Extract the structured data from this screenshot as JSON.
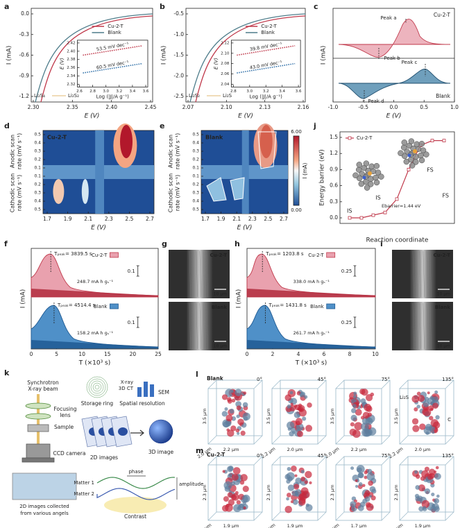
{
  "panels": {
    "a": {
      "label": "a",
      "xlabel": "E (V)",
      "ylabel": "I (mA)",
      "xticks": [
        "2.30",
        "2.35",
        "2.40",
        "2.45"
      ],
      "yticks": [
        "0.0",
        "-0.3",
        "-0.6",
        "-0.9",
        "-1.2"
      ],
      "legend": [
        "Cu-2-T",
        "Blank"
      ],
      "inset": {
        "xlabel": "Log (|J|/A g⁻¹)",
        "ylabel": "E (V)",
        "xticks": [
          "2.6",
          "2.8",
          "3.0",
          "3.2",
          "3.4",
          "3.6"
        ],
        "yticks": [
          "2.42",
          "2.40",
          "2.38",
          "2.36",
          "2.34",
          "2.32"
        ],
        "slopes": [
          "53.5 mV dec⁻¹",
          "60.5 mV dec⁻¹"
        ]
      },
      "note": [
        "Li₂S₄",
        "Li₂S₂"
      ]
    },
    "b": {
      "label": "b",
      "xlabel": "E (V)",
      "ylabel": "I (mA)",
      "xticks": [
        "2.07",
        "2.10",
        "2.13",
        "2.16"
      ],
      "yticks": [
        "-0.5",
        "-1.0",
        "-1.5",
        "-2.0",
        "-2.5"
      ],
      "legend": [
        "Cu-2-T",
        "Blank"
      ],
      "inset": {
        "xlabel": "Log (|J|/A g⁻¹)",
        "ylabel": "E (V)",
        "xticks": [
          "2.8",
          "3.0",
          "3.2",
          "3.4",
          "3.6"
        ],
        "yticks": [
          "2.12",
          "2.10",
          "2.08",
          "2.06",
          "2.04"
        ],
        "slopes": [
          "39.8 mV dec⁻¹",
          "43.0 mV dec⁻¹"
        ]
      },
      "note": [
        "Li₂S₂",
        "Li₂S"
      ]
    },
    "c": {
      "label": "c",
      "xlabel": "E (V)",
      "ylabel": "I (mA)",
      "xticks": [
        "-1.0",
        "-0.5",
        "0.0",
        "0.5",
        "1.0"
      ],
      "legend": [
        "Cu-2-T",
        "Blank"
      ],
      "peaks": [
        "Peak a",
        "Peak b",
        "Peak c",
        "Peak d"
      ]
    },
    "d": {
      "label": "d",
      "name": "Cu-2-T",
      "xlabel": "E (V)",
      "ylabel": [
        "Cathodic scan",
        "rate (mV s⁻¹)",
        "Anodic scan",
        "rate (mV s⁻¹)"
      ],
      "xticks": [
        "1.7",
        "1.9",
        "2.1",
        "2.3",
        "2.5",
        "2.7"
      ],
      "yticks": [
        "0.5",
        "0.4",
        "0.3",
        "0.2",
        "0.1",
        "0.1",
        "0.2",
        "0.3",
        "0.4",
        "0.5"
      ]
    },
    "e": {
      "label": "e",
      "name": "Blank",
      "xlabel": "E (V)",
      "ylabel": [
        "Cathodic scan",
        "rate (mV s⁻¹)",
        "Anodic scan",
        "rate (mV s⁻¹)"
      ],
      "xticks": [
        "1.7",
        "1.9",
        "2.1",
        "2.3",
        "2.5",
        "2.7"
      ],
      "yticks": [
        "0.5",
        "0.4",
        "0.3",
        "0.2",
        "0.1",
        "0.1",
        "0.2",
        "0.3",
        "0.4",
        "0.5"
      ],
      "colorbar": [
        "6.00",
        "0.00"
      ],
      "colorbar_label": "I (mA)"
    },
    "j": {
      "label": "j",
      "legend": "Cu-2-T",
      "xlabel": "Reaction coordinate",
      "ylabel": "Energy barrier (eV)",
      "yticks": [
        "1.5",
        "1.2",
        "0.9",
        "0.6",
        "0.3",
        "0.0"
      ],
      "states": [
        "IS",
        "FS",
        "IS",
        "FS"
      ],
      "barrier": "Ebarrier=1.44 eV"
    },
    "f": {
      "label": "f",
      "xlabel": "T (×10³ s)",
      "ylabel": "I (mA)",
      "xticks": [
        "0",
        "5",
        "10",
        "15",
        "20",
        "25"
      ],
      "top": {
        "peak": "Tₚₑₐₖ= 3839.5 s",
        "capacity": "248.7 mA h gₛ⁻¹",
        "legend": "Cu-2-T",
        "scale": "0.1"
      },
      "bottom": {
        "peak": "Tₚₑₐₖ= 4514.4 s",
        "capacity": "158.2 mA h gₛ⁻¹",
        "legend": "Blank",
        "scale": "0.1"
      }
    },
    "g": {
      "label": "g",
      "top": {
        "name": "Cu-2-T",
        "scale": "10 μm"
      },
      "bottom": {
        "name": "Blank",
        "scale": "10 μm"
      }
    },
    "h": {
      "label": "h",
      "xlabel": "T (×10³ s)",
      "ylabel": "I (mA)",
      "xticks": [
        "0",
        "2",
        "4",
        "6",
        "8",
        "10"
      ],
      "top": {
        "peak": "Tₚₑₐₖ= 1203.8 s",
        "capacity": "338.0 mA h gₛ⁻¹",
        "legend": "Cu-2-T",
        "scale": "0.25"
      },
      "bottom": {
        "peak": "Tₚₑₐₖ= 1431.8 s",
        "capacity": "261.7 mA h gₛ⁻¹",
        "legend": "Blank",
        "scale": "0.25"
      }
    },
    "i": {
      "label": "i",
      "top": {
        "name": "Cu-2-T",
        "scale": "10 μm"
      },
      "bottom": {
        "name": "Blank",
        "scale": "10 μm"
      }
    },
    "k": {
      "label": "k",
      "beam": [
        "Synchrotron",
        "X-ray beam"
      ],
      "ring": "Storage ring",
      "ct": [
        "X-ray",
        "3D CT"
      ],
      "sem": "SEM",
      "resolution": "Spatial resolution",
      "lens": [
        "Focusing",
        "lens"
      ],
      "sample": "Sample",
      "camera": "CCD camera",
      "images2d": "2D images",
      "image3d": "3D image",
      "phase": "phase",
      "amplitude": "amplitude",
      "matter": [
        "Matter 1",
        "Matter 2"
      ],
      "contrast": "Contrast",
      "caption": [
        "2D images collected",
        "from various angels"
      ]
    },
    "l": {
      "label": "l",
      "name": "Blank",
      "cubes": [
        {
          "angle": "0°",
          "dims": [
            "3.5 μm",
            "2.0 μm",
            "2.2 μm"
          ]
        },
        {
          "angle": "45°",
          "dims": [
            "3.5 μm",
            "2.2 μm",
            "2.0 μm"
          ]
        },
        {
          "angle": "75°",
          "dims": [
            "3.5 μm",
            "2.0 μm",
            "2.2 μm"
          ]
        },
        {
          "angle": "135°",
          "dims": [
            "3.5 μm",
            "2.2 μm",
            "2.0 μm"
          ]
        }
      ],
      "species": [
        "Li₂S",
        "C"
      ]
    },
    "m": {
      "label": "m",
      "name": "Cu-2-T",
      "cubes": [
        {
          "angle": "0°",
          "dims": [
            "2.3 μm",
            "1.7 μm",
            "1.9 μm"
          ]
        },
        {
          "angle": "45°",
          "dims": [
            "2.3 μm",
            "1.7 μm",
            "1.9 μm"
          ]
        },
        {
          "angle": "75°",
          "dims": [
            "2.3 μm",
            "1.9 μm",
            "1.7 μm"
          ]
        },
        {
          "angle": "135°",
          "dims": [
            "2.3 μm",
            "1.7 μm",
            "1.9 μm"
          ]
        }
      ]
    }
  }
}
